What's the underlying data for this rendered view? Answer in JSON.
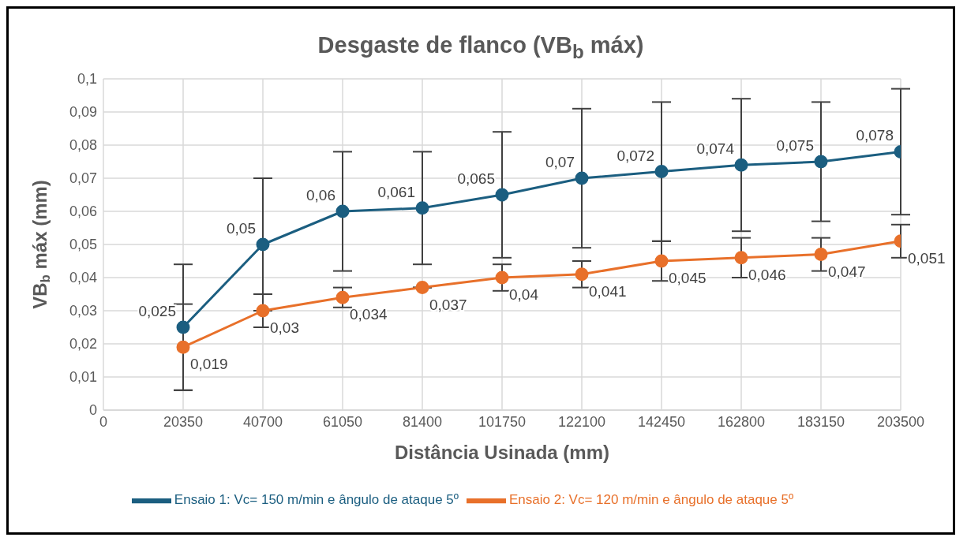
{
  "chart_data": {
    "type": "line",
    "title": "Desgaste de flanco (VB$_{b}$ máx)",
    "xlabel": "Distância Usinada (mm)",
    "ylabel": "VB$_{b}$ máx (mm)",
    "x": [
      20350,
      40700,
      61050,
      81400,
      101750,
      122100,
      142450,
      162800,
      183150,
      203500
    ],
    "xlim": [
      0,
      203500
    ],
    "xticks": [
      0,
      20350,
      40700,
      61050,
      81400,
      101750,
      122100,
      142450,
      162800,
      183150,
      203500
    ],
    "ylim": [
      0,
      0.1
    ],
    "yticks": [
      0,
      {
        "value": 0.01,
        "label": "0,01"
      },
      {
        "value": 0.02,
        "label": "0,02"
      },
      {
        "value": 0.03,
        "label": "0,03"
      },
      {
        "value": 0.04,
        "label": "0,04"
      },
      {
        "value": 0.05,
        "label": "0,05"
      },
      {
        "value": 0.06,
        "label": "0,06"
      },
      {
        "value": 0.07,
        "label": "0,07"
      },
      {
        "value": 0.08,
        "label": "0,08"
      },
      {
        "value": 0.09,
        "label": "0,09"
      },
      {
        "value": 0.1,
        "label": "0,1"
      }
    ],
    "grid": true,
    "legend": "bottom",
    "marker": "circle",
    "line_style": "solid",
    "series": [
      {
        "name": "Ensaio 1: Vc= 150 m/min e ângulo de ataque 5º",
        "color": "#1b5e80",
        "values": [
          0.025,
          0.05,
          0.06,
          0.061,
          0.065,
          0.07,
          0.072,
          0.074,
          0.075,
          0.078
        ],
        "errors": [
          0.019,
          0.02,
          0.018,
          0.017,
          0.019,
          0.021,
          0.021,
          0.02,
          0.018,
          0.019
        ],
        "value_labels": [
          "0,025",
          "0,05",
          "0,06",
          "0,061",
          "0,065",
          "0,07",
          "0,072",
          "0,074",
          "0,075",
          "0,078"
        ]
      },
      {
        "name": "Ensaio 2: Vc= 120 m/min e ângulo de ataque 5º",
        "color": "#e8702a",
        "values": [
          0.019,
          0.03,
          0.034,
          0.037,
          0.04,
          0.041,
          0.045,
          0.046,
          0.047,
          0.051
        ],
        "errors": [
          0.013,
          0.005,
          0.003,
          null,
          0.004,
          0.004,
          0.006,
          0.006,
          0.005,
          0.005
        ],
        "value_labels": [
          "0,019",
          "0,03",
          "0,034",
          "0,037",
          "0,04",
          "0,041",
          "0,045",
          "0,046",
          "0,047",
          "0,051"
        ]
      }
    ]
  }
}
